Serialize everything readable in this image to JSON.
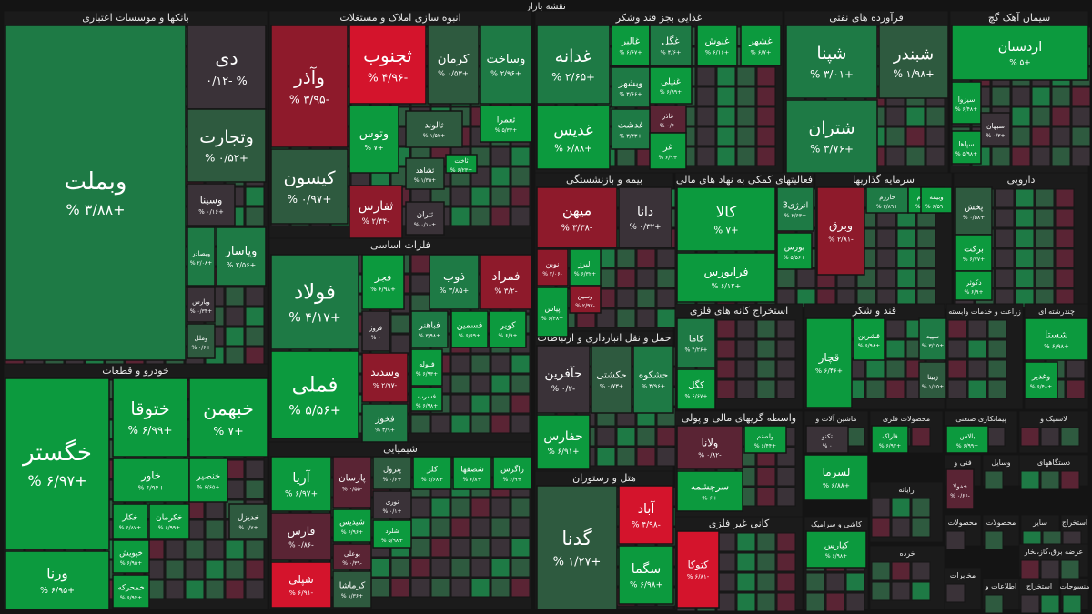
{
  "page": {
    "title": "نقشه بازار"
  },
  "legend_colors": {
    "up_strong": "#0c9a3e",
    "up_mid": "#1e7a45",
    "up_weak": "#2e5a3f",
    "flat": "#3a3238",
    "down_weak": "#5a2434",
    "down_mid": "#8e1a2b",
    "down_strong": "#d4142c",
    "background": "#141414",
    "text": "#ffffff"
  },
  "chart_data": {
    "type": "treemap",
    "title": "نقشه بازار",
    "sectors": [
      {
        "name": "بانکها و موسسات اعتباری",
        "stocks": [
          {
            "label": "وبملت",
            "value": "+۳/۸۸ %",
            "change": 3.88
          },
          {
            "label": "دی",
            "value": "% -۰/۱۲",
            "change": -0.12
          },
          {
            "label": "وتجارت",
            "value": "+۰/۵۲ %",
            "change": 0.52
          },
          {
            "label": "وسینا",
            "value": "+۰/۱۶ %",
            "change": 0.16
          },
          {
            "label": "وبصادر",
            "value": "+۲/۰۸ %",
            "change": 2.08
          },
          {
            "label": "وپاسار",
            "value": "+۲/۵۶ %",
            "change": 2.56
          },
          {
            "label": "وپارس",
            "value": "+۰/۳۴ %",
            "change": 0.34
          },
          {
            "label": "وملل",
            "value": "+۰/۶ %",
            "change": 0.6
          }
        ]
      },
      {
        "name": "خودرو و قطعات",
        "stocks": [
          {
            "label": "خگستر",
            "value": "+۶/۹۷ %",
            "change": 6.97
          },
          {
            "label": "خبهمن",
            "value": "+۷ %",
            "change": 7.0
          },
          {
            "label": "ختوقا",
            "value": "+۶/۹۹ %",
            "change": 6.99
          },
          {
            "label": "خاور",
            "value": "+۶/۹۴ %",
            "change": 6.94
          },
          {
            "label": "خنصیر",
            "value": "+۶/۶۵ %",
            "change": 6.65
          },
          {
            "label": "خکار",
            "value": "+۶/۸۷ %",
            "change": 6.87
          },
          {
            "label": "خکرمان",
            "value": "+۶/۹۹ %",
            "change": 6.99
          },
          {
            "label": "خدیزل",
            "value": "+۰/۷ %",
            "change": 0.7
          },
          {
            "label": "خپویش",
            "value": "+۶/۹۵ %",
            "change": 6.95
          },
          {
            "label": "خمحرکه",
            "value": "+۶/۹۴ %",
            "change": 6.94
          },
          {
            "label": "ورنا",
            "value": "+۶/۹۵ %",
            "change": 6.95
          }
        ]
      },
      {
        "name": "انبوه سازی املاک و مستغلات",
        "stocks": [
          {
            "label": "وآذر",
            "value": "-۳/۹۵ %",
            "change": -3.95
          },
          {
            "label": "ثجنوب",
            "value": "-۴/۹۶ %",
            "change": -4.96
          },
          {
            "label": "کرمان",
            "value": "+۰/۵۳ %",
            "change": 0.53
          },
          {
            "label": "وساخت",
            "value": "+۲/۹۶ %",
            "change": 2.96
          },
          {
            "label": "وتوس",
            "value": "+۷ %",
            "change": 7.0
          },
          {
            "label": "ثالوند",
            "value": "+۱/۵۲ %",
            "change": 1.52
          },
          {
            "label": "ثعمرا",
            "value": "+۵/۳۳ %",
            "change": 5.33
          },
          {
            "label": "کیسون",
            "value": "+۰/۹۷ %",
            "change": 0.97
          },
          {
            "label": "ثشاهد",
            "value": "+۱/۳۵ %",
            "change": 1.35
          },
          {
            "label": "ثاخت",
            "value": "+۶/۲۳ %",
            "change": 6.23
          },
          {
            "label": "ثفارس",
            "value": "-۲/۳۴ %",
            "change": -2.34
          },
          {
            "label": "ثتران",
            "value": "+۰/۱۸ %",
            "change": 0.18
          }
        ]
      },
      {
        "name": "فلزات اساسی",
        "stocks": [
          {
            "label": "فولاد",
            "value": "+۴/۱۷ %",
            "change": 4.17
          },
          {
            "label": "فجر",
            "value": "+۶/۹۸ %",
            "change": 6.98
          },
          {
            "label": "ذوب",
            "value": "+۳/۸۵ %",
            "change": 3.85
          },
          {
            "label": "فمراد",
            "value": "-۳/۲ %",
            "change": -3.2
          },
          {
            "label": "فملی",
            "value": "+۵/۵۶ %",
            "change": 5.56
          },
          {
            "label": "فروژ",
            "value": "۰ %",
            "change": 0
          },
          {
            "label": "فباهنر",
            "value": "+۳/۹۸ %",
            "change": 3.98
          },
          {
            "label": "فسمین",
            "value": "+۶/۶۹ %",
            "change": 6.69
          },
          {
            "label": "کویر",
            "value": "+۶/۹ %",
            "change": 6.9
          },
          {
            "label": "فلوله",
            "value": "+۶/۹۳ %",
            "change": 6.93
          },
          {
            "label": "وسدید",
            "value": "-۲/۹۷ %",
            "change": -2.97
          },
          {
            "label": "فسرب",
            "value": "+۶/۹۸ %",
            "change": 6.98
          },
          {
            "label": "فخوز",
            "value": "+۳/۹ %",
            "change": 3.9
          }
        ]
      },
      {
        "name": "شیمیایی",
        "stocks": [
          {
            "label": "آریا",
            "value": "+۶/۹۷ %",
            "change": 6.97
          },
          {
            "label": "پارسان",
            "value": "-۰/۵۵ %",
            "change": -0.55
          },
          {
            "label": "پترول",
            "value": "+۰/۶ %",
            "change": 0.6
          },
          {
            "label": "کلر",
            "value": "+۶/۶۸ %",
            "change": 6.68
          },
          {
            "label": "شصفها",
            "value": "+۶/۸ %",
            "change": 6.8
          },
          {
            "label": "زاگرس",
            "value": "+۶/۹ %",
            "change": 6.9
          },
          {
            "label": "نوری",
            "value": "+۰/۱ %",
            "change": 0.1
          },
          {
            "label": "فارس",
            "value": "-۰/۸۶ %",
            "change": -0.86
          },
          {
            "label": "شیدیس",
            "value": "+۶/۹۶ %",
            "change": 6.96
          },
          {
            "label": "شلرد",
            "value": "+۵/۹۸ %",
            "change": 5.98
          },
          {
            "label": "بوعلی",
            "value": "-۰/۳۹ %",
            "change": -0.39
          },
          {
            "label": "شپلی",
            "value": "-۶/۹۱ %",
            "change": -6.91
          },
          {
            "label": "کرماشا",
            "value": "+۱/۳۶ %",
            "change": 1.36
          }
        ]
      },
      {
        "name": "غذایی بجز قند وشکر",
        "stocks": [
          {
            "label": "غدانه",
            "value": "+۲/۶۵ %",
            "change": 2.65
          },
          {
            "label": "غالبر",
            "value": "+۶/۶۷ %",
            "change": 6.67
          },
          {
            "label": "غگل",
            "value": "+۴/۶ %",
            "change": 4.6
          },
          {
            "label": "غنوش",
            "value": "+۶/۱۶ %",
            "change": 6.16
          },
          {
            "label": "غشهر",
            "value": "+۶/۷ %",
            "change": 6.7
          },
          {
            "label": "وبشهر",
            "value": "+۳/۶۶ %",
            "change": 3.66
          },
          {
            "label": "غنیلی",
            "value": "+۶/۹۹ %",
            "change": 6.99
          },
          {
            "label": "غاذر",
            "value": "-۰/۶ %",
            "change": -0.6
          },
          {
            "label": "غدیس",
            "value": "+۶/۸۸ %",
            "change": 6.88
          },
          {
            "label": "غدشت",
            "value": "+۳/۴۳ %",
            "change": 3.43
          },
          {
            "label": "غز",
            "value": "+۶/۹ %",
            "change": 6.9
          }
        ]
      },
      {
        "name": "فرآورده های نفتی",
        "stocks": [
          {
            "label": "شپنا",
            "value": "+۳/۰۱ %",
            "change": 3.01
          },
          {
            "label": "شبندر",
            "value": "+۱/۹۸ %",
            "change": 1.98
          },
          {
            "label": "شتران",
            "value": "+۳/۷۶ %",
            "change": 3.76
          }
        ]
      },
      {
        "name": "سیمان آهک گچ",
        "stocks": [
          {
            "label": "اردستان",
            "value": "+۵ %",
            "change": 5.0
          },
          {
            "label": "سیزوا",
            "value": "+۶/۴۸ %",
            "change": 6.48
          },
          {
            "label": "سبهان",
            "value": "+۰/۳ %",
            "change": 0.3
          },
          {
            "label": "سپاها",
            "value": "+۵/۹۸ %",
            "change": 5.98
          }
        ]
      },
      {
        "name": "بیمه و بازنشستگی",
        "stocks": [
          {
            "label": "میهن",
            "value": "-۳/۳۸ %",
            "change": -3.38
          },
          {
            "label": "دانا",
            "value": "+۰/۳۲ %",
            "change": 0.32
          },
          {
            "label": "نوین",
            "value": "-۲/۰۶ %",
            "change": -2.06
          },
          {
            "label": "البرز",
            "value": "+۶/۳۲ %",
            "change": 6.32
          },
          {
            "label": "وسین",
            "value": "-۲/۹۷ %",
            "change": -2.97
          },
          {
            "label": "پیاس",
            "value": "+۶/۴۸ %",
            "change": 6.48
          }
        ]
      },
      {
        "name": "فعالیتهای کمکی به نهاد های مالی",
        "stocks": [
          {
            "label": "کالا",
            "value": "+۷ %",
            "change": 7.0
          },
          {
            "label": "انرژی3",
            "value": "+۲/۶۳ %",
            "change": 2.63
          },
          {
            "label": "بورس",
            "value": "+۵/۵۶ %",
            "change": 5.56
          },
          {
            "label": "فرابورس",
            "value": "+۶/۱۲ %",
            "change": 6.12
          }
        ]
      },
      {
        "name": "سرمایه گذاریها",
        "stocks": [
          {
            "label": "وبرق",
            "value": "-۲/۸۱ %",
            "change": -2.81
          },
          {
            "label": "خارزم",
            "value": "+۲/۸۹ %",
            "change": 2.89
          },
          {
            "label": "وخارزم",
            "value": "+۶/۷۶ %",
            "change": 6.76
          },
          {
            "label": "وبیمه",
            "value": "+۶/۵۹ %",
            "change": 6.59
          }
        ]
      },
      {
        "name": "دارویی",
        "stocks": [
          {
            "label": "پخش",
            "value": "+۰/۵۸ %",
            "change": 0.58
          },
          {
            "label": "برکت",
            "value": "+۶/۷۷ %",
            "change": 6.77
          },
          {
            "label": "دکوثر",
            "value": "+۶/۹ %",
            "change": 6.9
          }
        ]
      },
      {
        "name": "حمل و نقل انبارداری و ارتباطات",
        "stocks": [
          {
            "label": "حآفرین",
            "value": "-۰/۲ %",
            "change": -0.2
          },
          {
            "label": "حکشتی",
            "value": "+۰/۷۳ %",
            "change": 0.73
          },
          {
            "label": "حشکوه",
            "value": "+۳/۹۶ %",
            "change": 3.96
          },
          {
            "label": "حفارس",
            "value": "+۶/۹۱ %",
            "change": 6.91
          }
        ]
      },
      {
        "name": "هتل و رستوران",
        "stocks": [
          {
            "label": "گدنا",
            "value": "+۱/۲۷ %",
            "change": 1.27
          },
          {
            "label": "آباد",
            "value": "-۴/۹۸ %",
            "change": -4.98
          },
          {
            "label": "سگما",
            "value": "+۶/۹۸ %",
            "change": 6.98
          }
        ]
      },
      {
        "name": "استخراج کانه های فلزی",
        "stocks": [
          {
            "label": "کاما",
            "value": "+۴/۲۶ %",
            "change": 4.26
          },
          {
            "label": "کگل",
            "value": "+۶/۶۷ %",
            "change": 6.67
          }
        ]
      },
      {
        "name": "قند و شکر",
        "stocks": [
          {
            "label": "قچار",
            "value": "+۶/۴۶ %",
            "change": 6.46
          },
          {
            "label": "قشرین",
            "value": "+۶/۹۸ %",
            "change": 6.98
          }
        ]
      },
      {
        "name": "زراعت و خدمات وابسته",
        "stocks": [
          {
            "label": "سپید",
            "value": "+۳/۱۵ %",
            "change": 3.15
          },
          {
            "label": "زبینا",
            "value": "+۱/۶۵ %",
            "change": 1.65
          }
        ]
      },
      {
        "name": "چندرشته ای",
        "stocks": [
          {
            "label": "شستا",
            "value": "+۶/۹۸ %",
            "change": 6.98
          },
          {
            "label": "وغدیر",
            "value": "+۶/۴۸ %",
            "change": 6.48
          }
        ]
      },
      {
        "name": "واسطه گریهای مالی و پولی",
        "stocks": [
          {
            "label": "ولانا",
            "value": "-۰/۸۲ %",
            "change": -0.82
          },
          {
            "label": "ولصنم",
            "value": "+۶/۴۴ %",
            "change": 6.44
          },
          {
            "label": "سرچشمه",
            "value": "+۶ %",
            "change": 6.0
          }
        ]
      },
      {
        "name": "ماشین آلات و",
        "stocks": [
          {
            "label": "تکنو",
            "value": "۰ %",
            "change": 0
          },
          {
            "label": "لسرما",
            "value": "+۶/۸۸ %",
            "change": 6.88
          }
        ]
      },
      {
        "name": "محصولات فلزی",
        "stocks": [
          {
            "label": "فاراک",
            "value": "+۶/۹۲ %",
            "change": 6.92
          }
        ]
      },
      {
        "name": "پیمانکاری صنعتی",
        "stocks": [
          {
            "label": "بالاس",
            "value": "+۶/۹۹ %",
            "change": 6.99
          }
        ]
      },
      {
        "name": "لاستیک و",
        "stocks": [
          {
            "label": "خفولا",
            "value": "-۰/۶۶ %",
            "change": -0.66
          }
        ]
      },
      {
        "name": "کانی غیر فلزی",
        "stocks": [
          {
            "label": "کتوکا",
            "value": "-۶/۸۱ %",
            "change": -6.81
          }
        ]
      },
      {
        "name": "کاشی و سرامیک",
        "stocks": [
          {
            "label": "کپارس",
            "value": "+۶/۹۸ %",
            "change": 6.98
          }
        ]
      },
      {
        "name": "رایانه",
        "stocks": []
      },
      {
        "name": "دستگاههای",
        "stocks": []
      },
      {
        "name": "وسایل",
        "stocks": []
      },
      {
        "name": "فنی و",
        "stocks": []
      },
      {
        "name": "محصولات",
        "stocks": []
      },
      {
        "name": "محصولات",
        "stocks": []
      },
      {
        "name": "استخراج",
        "stocks": []
      },
      {
        "name": "سایر",
        "stocks": []
      },
      {
        "name": "خرده",
        "stocks": []
      },
      {
        "name": "عرضه برق،گاز،بخار",
        "stocks": []
      },
      {
        "name": "مخابرات",
        "stocks": []
      },
      {
        "name": "اطلاعات و",
        "stocks": []
      },
      {
        "name": "استخراج",
        "stocks": []
      },
      {
        "name": "منسوجات",
        "stocks": []
      },
      {
        "name": "ساخت",
        "stocks": []
      }
    ]
  }
}
